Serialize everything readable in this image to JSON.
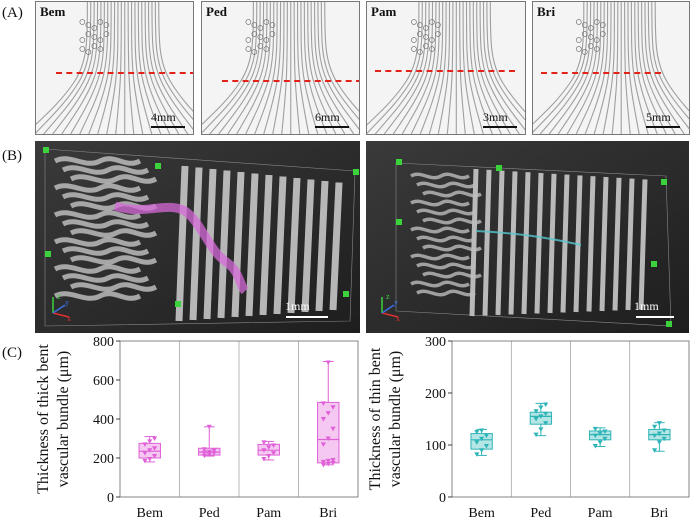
{
  "panel_labels": {
    "a": "(A)",
    "b": "(B)",
    "c": "(C)"
  },
  "panel_a": {
    "images": [
      {
        "name": "Bem",
        "scale": "4mm"
      },
      {
        "name": "Ped",
        "scale": "6mm"
      },
      {
        "name": "Pam",
        "scale": "3mm"
      },
      {
        "name": "Bri",
        "scale": "5mm"
      }
    ]
  },
  "panel_b": {
    "left_scale": "1mm",
    "right_scale": "1mm",
    "axis_letters": {
      "x": "x",
      "y": "y",
      "z": "z"
    }
  },
  "chart_data": [
    {
      "type": "box",
      "ylabel_line1": "Thickness of  thick bent",
      "ylabel_line2": "vascular bundle (μm)",
      "categories": [
        "Bem",
        "Ped",
        "Pam",
        "Bri"
      ],
      "ylim": [
        0,
        800
      ],
      "yticks": [
        0,
        200,
        400,
        600,
        800
      ],
      "color": "#e060d8",
      "boxes": [
        {
          "whisker_low": 180,
          "q1": 200,
          "median": 235,
          "q3": 275,
          "whisker_high": 310,
          "points": [
            185,
            195,
            210,
            225,
            240,
            250,
            270,
            285,
            300
          ]
        },
        {
          "whisker_low": 210,
          "q1": 215,
          "median": 230,
          "q3": 250,
          "whisker_high": 360,
          "points": [
            212,
            218,
            225,
            228,
            232,
            238,
            245,
            360
          ]
        },
        {
          "whisker_low": 190,
          "q1": 215,
          "median": 240,
          "q3": 270,
          "whisker_high": 285,
          "points": [
            195,
            210,
            225,
            240,
            255,
            265,
            280
          ]
        },
        {
          "whisker_low": 165,
          "q1": 175,
          "median": 295,
          "q3": 485,
          "whisker_high": 695,
          "points": [
            165,
            170,
            175,
            180,
            185,
            190,
            270,
            300,
            350,
            400,
            430,
            460,
            480,
            690
          ]
        }
      ]
    },
    {
      "type": "box",
      "ylabel_line1": "Thickness of  thin bent",
      "ylabel_line2": "vascular bundle (μm)",
      "categories": [
        "Bem",
        "Ped",
        "Pam",
        "Bri"
      ],
      "ylim": [
        0,
        300
      ],
      "yticks": [
        0,
        100,
        200,
        300
      ],
      "color": "#2fb5b8",
      "boxes": [
        {
          "whisker_low": 80,
          "q1": 92,
          "median": 110,
          "q3": 122,
          "whisker_high": 130,
          "points": [
            82,
            90,
            98,
            105,
            112,
            118,
            125,
            128
          ]
        },
        {
          "whisker_low": 118,
          "q1": 140,
          "median": 155,
          "q3": 163,
          "whisker_high": 180,
          "points": [
            120,
            130,
            142,
            150,
            155,
            160,
            165,
            172,
            178
          ]
        },
        {
          "whisker_low": 97,
          "q1": 110,
          "median": 120,
          "q3": 127,
          "whisker_high": 133,
          "points": [
            98,
            105,
            112,
            118,
            122,
            126,
            131
          ]
        },
        {
          "whisker_low": 88,
          "q1": 110,
          "median": 120,
          "q3": 130,
          "whisker_high": 143,
          "points": [
            90,
            105,
            112,
            118,
            122,
            128,
            135,
            142
          ]
        }
      ]
    }
  ]
}
